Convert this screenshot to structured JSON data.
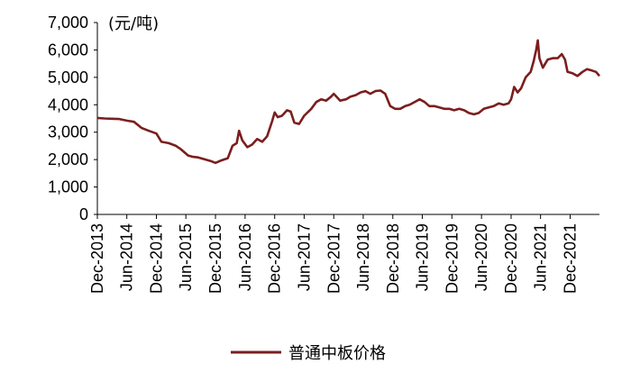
{
  "chart_data": {
    "type": "line",
    "unit_label": "(元/吨)",
    "ylim": [
      0,
      7000
    ],
    "yticks": [
      "0",
      "1,000",
      "2,000",
      "3,000",
      "4,000",
      "5,000",
      "6,000",
      "7,000"
    ],
    "ytick_values": [
      0,
      1000,
      2000,
      3000,
      4000,
      5000,
      6000,
      7000
    ],
    "xlim": [
      "2013-12-01",
      "2022-05-31"
    ],
    "xticks": [
      {
        "label": "Dec-2013",
        "date": "2013-12-01"
      },
      {
        "label": "Jun-2014",
        "date": "2014-06-01"
      },
      {
        "label": "Dec-2014",
        "date": "2014-12-01"
      },
      {
        "label": "Jun-2015",
        "date": "2015-06-01"
      },
      {
        "label": "Dec-2015",
        "date": "2015-12-01"
      },
      {
        "label": "Jun-2016",
        "date": "2016-06-01"
      },
      {
        "label": "Dec-2016",
        "date": "2016-12-01"
      },
      {
        "label": "Jun-2017",
        "date": "2017-06-01"
      },
      {
        "label": "Dec-2017",
        "date": "2017-12-01"
      },
      {
        "label": "Jun-2018",
        "date": "2018-06-01"
      },
      {
        "label": "Dec-2018",
        "date": "2018-12-01"
      },
      {
        "label": "Jun-2019",
        "date": "2019-06-01"
      },
      {
        "label": "Dec-2019",
        "date": "2019-12-01"
      },
      {
        "label": "Jun-2020",
        "date": "2020-06-01"
      },
      {
        "label": "Dec-2020",
        "date": "2020-12-01"
      },
      {
        "label": "Jun-2021",
        "date": "2021-06-01"
      },
      {
        "label": "Dec-2021",
        "date": "2021-12-01"
      }
    ],
    "grid": false,
    "legend_position": "bottom-center",
    "series": [
      {
        "name": "普通中板价格",
        "color": "#7b1e1e",
        "points": [
          [
            "2013-12-01",
            3520
          ],
          [
            "2014-01-15",
            3500
          ],
          [
            "2014-03-01",
            3490
          ],
          [
            "2014-04-15",
            3480
          ],
          [
            "2014-06-01",
            3420
          ],
          [
            "2014-07-15",
            3380
          ],
          [
            "2014-09-01",
            3150
          ],
          [
            "2014-10-15",
            3050
          ],
          [
            "2014-12-01",
            2950
          ],
          [
            "2015-01-01",
            2650
          ],
          [
            "2015-02-15",
            2600
          ],
          [
            "2015-04-01",
            2500
          ],
          [
            "2015-05-01",
            2380
          ],
          [
            "2015-06-15",
            2150
          ],
          [
            "2015-07-15",
            2100
          ],
          [
            "2015-08-15",
            2080
          ],
          [
            "2015-10-01",
            2000
          ],
          [
            "2015-11-01",
            1950
          ],
          [
            "2015-12-01",
            1880
          ],
          [
            "2016-01-01",
            1960
          ],
          [
            "2016-02-15",
            2050
          ],
          [
            "2016-03-15",
            2500
          ],
          [
            "2016-04-10",
            2600
          ],
          [
            "2016-04-25",
            3050
          ],
          [
            "2016-05-15",
            2700
          ],
          [
            "2016-06-15",
            2450
          ],
          [
            "2016-07-15",
            2550
          ],
          [
            "2016-08-15",
            2750
          ],
          [
            "2016-09-15",
            2650
          ],
          [
            "2016-10-15",
            2850
          ],
          [
            "2016-11-15",
            3400
          ],
          [
            "2016-12-01",
            3720
          ],
          [
            "2016-12-20",
            3550
          ],
          [
            "2017-01-15",
            3600
          ],
          [
            "2017-02-15",
            3800
          ],
          [
            "2017-03-10",
            3750
          ],
          [
            "2017-04-01",
            3350
          ],
          [
            "2017-05-01",
            3300
          ],
          [
            "2017-06-01",
            3600
          ],
          [
            "2017-07-15",
            3850
          ],
          [
            "2017-08-15",
            4100
          ],
          [
            "2017-09-15",
            4200
          ],
          [
            "2017-10-15",
            4150
          ],
          [
            "2017-11-15",
            4300
          ],
          [
            "2017-12-01",
            4400
          ],
          [
            "2018-01-10",
            4150
          ],
          [
            "2018-02-15",
            4200
          ],
          [
            "2018-03-15",
            4300
          ],
          [
            "2018-04-15",
            4350
          ],
          [
            "2018-05-15",
            4450
          ],
          [
            "2018-06-15",
            4500
          ],
          [
            "2018-07-15",
            4400
          ],
          [
            "2018-08-15",
            4500
          ],
          [
            "2018-09-15",
            4520
          ],
          [
            "2018-10-15",
            4400
          ],
          [
            "2018-11-15",
            3950
          ],
          [
            "2018-12-15",
            3850
          ],
          [
            "2019-01-15",
            3850
          ],
          [
            "2019-02-15",
            3950
          ],
          [
            "2019-03-15",
            4000
          ],
          [
            "2019-04-15",
            4100
          ],
          [
            "2019-05-15",
            4200
          ],
          [
            "2019-06-15",
            4100
          ],
          [
            "2019-07-15",
            3950
          ],
          [
            "2019-08-15",
            3950
          ],
          [
            "2019-09-15",
            3900
          ],
          [
            "2019-10-15",
            3850
          ],
          [
            "2019-11-15",
            3850
          ],
          [
            "2019-12-15",
            3800
          ],
          [
            "2020-01-15",
            3850
          ],
          [
            "2020-02-15",
            3800
          ],
          [
            "2020-03-15",
            3700
          ],
          [
            "2020-04-15",
            3650
          ],
          [
            "2020-05-15",
            3700
          ],
          [
            "2020-06-15",
            3850
          ],
          [
            "2020-07-15",
            3900
          ],
          [
            "2020-08-15",
            3950
          ],
          [
            "2020-09-15",
            4050
          ],
          [
            "2020-10-15",
            4000
          ],
          [
            "2020-11-15",
            4050
          ],
          [
            "2020-12-01",
            4200
          ],
          [
            "2020-12-20",
            4650
          ],
          [
            "2021-01-10",
            4450
          ],
          [
            "2021-02-01",
            4600
          ],
          [
            "2021-03-01",
            5000
          ],
          [
            "2021-04-01",
            5200
          ],
          [
            "2021-04-20",
            5600
          ],
          [
            "2021-05-05",
            6000
          ],
          [
            "2021-05-15",
            6350
          ],
          [
            "2021-05-25",
            5700
          ],
          [
            "2021-06-15",
            5350
          ],
          [
            "2021-07-15",
            5650
          ],
          [
            "2021-08-15",
            5700
          ],
          [
            "2021-09-15",
            5700
          ],
          [
            "2021-10-10",
            5850
          ],
          [
            "2021-10-30",
            5650
          ],
          [
            "2021-11-15",
            5200
          ],
          [
            "2021-12-15",
            5150
          ],
          [
            "2022-01-15",
            5050
          ],
          [
            "2022-02-15",
            5200
          ],
          [
            "2022-03-15",
            5300
          ],
          [
            "2022-04-15",
            5250
          ],
          [
            "2022-05-10",
            5200
          ],
          [
            "2022-05-31",
            5050
          ]
        ]
      }
    ]
  }
}
